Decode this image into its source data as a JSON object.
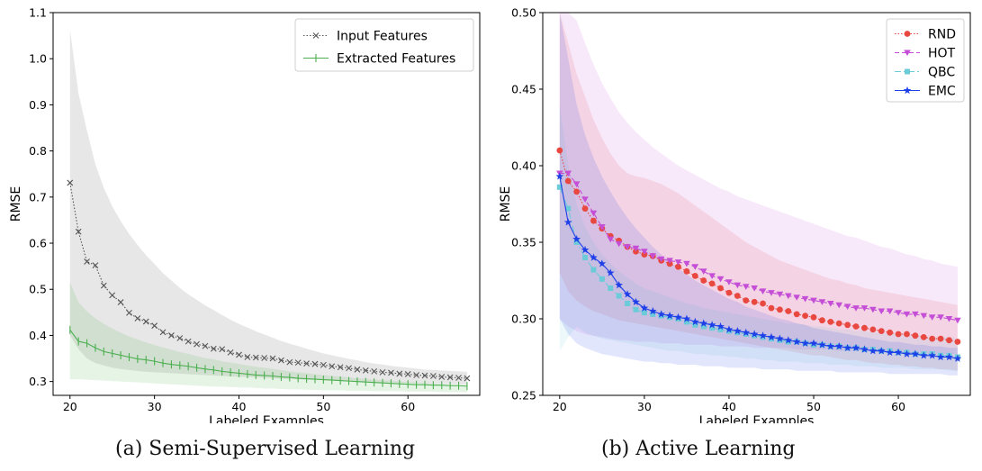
{
  "captions": [
    "(a) Semi-Supervised Learning",
    "(b) Active Learning"
  ],
  "chart_data": [
    {
      "type": "line",
      "title": "",
      "xlabel": "Labeled Examples",
      "ylabel": "RMSE",
      "xlim": [
        18,
        68.5
      ],
      "ylim": [
        0.27,
        1.1
      ],
      "xticks": [
        20,
        30,
        40,
        50,
        60
      ],
      "yticks": [
        0.3,
        0.4,
        0.5,
        0.6,
        0.7,
        0.8,
        0.9,
        1.0,
        1.1
      ],
      "ytick_labels": [
        "0.3",
        "0.4",
        "0.5",
        "0.6",
        "0.7",
        "0.8",
        "0.9",
        "1.0",
        "1.1"
      ],
      "grid": false,
      "legend": "top-right",
      "x_start": 20,
      "series": [
        {
          "name": "Input Features",
          "color": "#555555",
          "marker": "x",
          "linestyle": "dotted",
          "values": [
            0.731,
            0.625,
            0.56,
            0.552,
            0.508,
            0.487,
            0.472,
            0.449,
            0.437,
            0.43,
            0.421,
            0.407,
            0.4,
            0.394,
            0.387,
            0.381,
            0.377,
            0.371,
            0.37,
            0.363,
            0.358,
            0.353,
            0.352,
            0.351,
            0.35,
            0.346,
            0.342,
            0.341,
            0.339,
            0.338,
            0.336,
            0.333,
            0.331,
            0.329,
            0.326,
            0.324,
            0.322,
            0.32,
            0.319,
            0.317,
            0.316,
            0.314,
            0.313,
            0.312,
            0.31,
            0.309,
            0.308,
            0.307
          ],
          "band_upper": [
            1.063,
            0.925,
            0.845,
            0.771,
            0.72,
            0.68,
            0.648,
            0.62,
            0.596,
            0.574,
            0.555,
            0.535,
            0.519,
            0.503,
            0.489,
            0.477,
            0.465,
            0.455,
            0.444,
            0.434,
            0.425,
            0.417,
            0.409,
            0.402,
            0.395,
            0.388,
            0.382,
            0.377,
            0.371,
            0.366,
            0.361,
            0.357,
            0.353,
            0.349,
            0.346,
            0.342,
            0.339,
            0.337,
            0.334,
            0.332,
            0.33,
            0.328,
            0.326,
            0.325,
            0.324,
            0.323,
            0.322,
            0.321
          ],
          "band_lower": [
            0.4,
            0.37,
            0.35,
            0.34,
            0.335,
            0.33,
            0.327,
            0.325,
            0.323,
            0.321,
            0.32,
            0.319,
            0.318,
            0.317,
            0.316,
            0.315,
            0.314,
            0.313,
            0.312,
            0.311,
            0.31,
            0.31,
            0.309,
            0.308,
            0.307,
            0.306,
            0.306,
            0.305,
            0.304,
            0.304,
            0.303,
            0.302,
            0.302,
            0.301,
            0.3,
            0.3,
            0.299,
            0.298,
            0.298,
            0.297,
            0.297,
            0.296,
            0.296,
            0.295,
            0.295,
            0.294,
            0.294,
            0.293
          ]
        },
        {
          "name": "Extracted Features",
          "color": "#4caf50",
          "marker": "|",
          "linestyle": "solid",
          "values": [
            0.412,
            0.387,
            0.383,
            0.373,
            0.365,
            0.361,
            0.357,
            0.353,
            0.349,
            0.347,
            0.344,
            0.34,
            0.337,
            0.335,
            0.333,
            0.33,
            0.327,
            0.325,
            0.322,
            0.32,
            0.318,
            0.316,
            0.314,
            0.313,
            0.312,
            0.31,
            0.309,
            0.307,
            0.306,
            0.305,
            0.304,
            0.303,
            0.302,
            0.301,
            0.3,
            0.299,
            0.298,
            0.297,
            0.296,
            0.295,
            0.294,
            0.293,
            0.293,
            0.292,
            0.292,
            0.291,
            0.291,
            0.29
          ],
          "band_upper": [
            0.515,
            0.472,
            0.452,
            0.437,
            0.425,
            0.415,
            0.406,
            0.398,
            0.391,
            0.385,
            0.379,
            0.374,
            0.369,
            0.364,
            0.36,
            0.355,
            0.351,
            0.348,
            0.344,
            0.341,
            0.338,
            0.335,
            0.332,
            0.33,
            0.327,
            0.325,
            0.322,
            0.32,
            0.318,
            0.316,
            0.314,
            0.312,
            0.311,
            0.309,
            0.307,
            0.306,
            0.304,
            0.303,
            0.302,
            0.3,
            0.299,
            0.298,
            0.297,
            0.296,
            0.295,
            0.294,
            0.293,
            0.292
          ],
          "band_lower": [
            0.305,
            0.305,
            0.304,
            0.303,
            0.302,
            0.301,
            0.3,
            0.299,
            0.298,
            0.297,
            0.296,
            0.295,
            0.294,
            0.293,
            0.292,
            0.291,
            0.29,
            0.289,
            0.289,
            0.288,
            0.287,
            0.287,
            0.286,
            0.285,
            0.285,
            0.284,
            0.283,
            0.283,
            0.282,
            0.282,
            0.281,
            0.281,
            0.281,
            0.28,
            0.28,
            0.28,
            0.279,
            0.279,
            0.279,
            0.279,
            0.278,
            0.278,
            0.278,
            0.278,
            0.277,
            0.277,
            0.277,
            0.277
          ]
        }
      ]
    },
    {
      "type": "line",
      "title": "",
      "xlabel": "Labeled Examples",
      "ylabel": "RMSE",
      "xlim": [
        18,
        68.5
      ],
      "ylim": [
        0.25,
        0.5
      ],
      "xticks": [
        20,
        30,
        40,
        50,
        60
      ],
      "yticks": [
        0.25,
        0.3,
        0.35,
        0.4,
        0.45,
        0.5
      ],
      "ytick_labels": [
        "0.25",
        "0.30",
        "0.35",
        "0.40",
        "0.45",
        "0.50"
      ],
      "grid": false,
      "legend": "top-right",
      "x_start": 20,
      "series": [
        {
          "name": "RND",
          "color": "#e8483f",
          "marker": "o",
          "linestyle": "dotted",
          "values": [
            0.41,
            0.39,
            0.383,
            0.372,
            0.364,
            0.359,
            0.354,
            0.351,
            0.347,
            0.344,
            0.342,
            0.341,
            0.338,
            0.336,
            0.334,
            0.331,
            0.328,
            0.325,
            0.323,
            0.32,
            0.317,
            0.315,
            0.312,
            0.311,
            0.31,
            0.307,
            0.306,
            0.305,
            0.303,
            0.302,
            0.301,
            0.299,
            0.298,
            0.297,
            0.296,
            0.295,
            0.294,
            0.293,
            0.292,
            0.291,
            0.29,
            0.29,
            0.289,
            0.288,
            0.287,
            0.287,
            0.286,
            0.285
          ],
          "band_upper": [
            0.5,
            0.48,
            0.46,
            0.445,
            0.43,
            0.418,
            0.408,
            0.4,
            0.395,
            0.393,
            0.392,
            0.39,
            0.388,
            0.385,
            0.382,
            0.378,
            0.374,
            0.37,
            0.366,
            0.362,
            0.358,
            0.354,
            0.35,
            0.347,
            0.344,
            0.341,
            0.338,
            0.336,
            0.334,
            0.332,
            0.33,
            0.328,
            0.326,
            0.325,
            0.323,
            0.322,
            0.32,
            0.319,
            0.318,
            0.317,
            0.316,
            0.315,
            0.314,
            0.313,
            0.312,
            0.311,
            0.31,
            0.309
          ],
          "band_lower": [
            0.33,
            0.318,
            0.312,
            0.308,
            0.305,
            0.303,
            0.301,
            0.299,
            0.298,
            0.297,
            0.296,
            0.295,
            0.294,
            0.293,
            0.292,
            0.291,
            0.29,
            0.289,
            0.288,
            0.287,
            0.286,
            0.285,
            0.284,
            0.283,
            0.282,
            0.281,
            0.28,
            0.279,
            0.278,
            0.277,
            0.276,
            0.276,
            0.275,
            0.274,
            0.273,
            0.273,
            0.272,
            0.271,
            0.271,
            0.27,
            0.27,
            0.269,
            0.269,
            0.268,
            0.268,
            0.267,
            0.267,
            0.266
          ]
        },
        {
          "name": "HOT",
          "color": "#c44fd6",
          "marker": "v",
          "linestyle": "dashed",
          "values": [
            0.395,
            0.395,
            0.388,
            0.378,
            0.369,
            0.36,
            0.352,
            0.349,
            0.347,
            0.346,
            0.344,
            0.341,
            0.339,
            0.338,
            0.337,
            0.336,
            0.334,
            0.331,
            0.328,
            0.326,
            0.324,
            0.322,
            0.321,
            0.32,
            0.318,
            0.317,
            0.316,
            0.315,
            0.314,
            0.313,
            0.312,
            0.311,
            0.31,
            0.309,
            0.308,
            0.307,
            0.307,
            0.306,
            0.305,
            0.305,
            0.304,
            0.303,
            0.303,
            0.302,
            0.301,
            0.301,
            0.3,
            0.299
          ],
          "band_upper": [
            0.5,
            0.5,
            0.495,
            0.48,
            0.466,
            0.454,
            0.444,
            0.435,
            0.428,
            0.422,
            0.417,
            0.412,
            0.408,
            0.404,
            0.4,
            0.397,
            0.394,
            0.391,
            0.388,
            0.385,
            0.383,
            0.38,
            0.378,
            0.376,
            0.374,
            0.372,
            0.37,
            0.368,
            0.366,
            0.364,
            0.362,
            0.36,
            0.358,
            0.356,
            0.354,
            0.353,
            0.351,
            0.349,
            0.347,
            0.346,
            0.344,
            0.342,
            0.341,
            0.339,
            0.338,
            0.336,
            0.335,
            0.334
          ],
          "band_lower": [
            0.3,
            0.295,
            0.292,
            0.29,
            0.289,
            0.288,
            0.287,
            0.286,
            0.286,
            0.285,
            0.285,
            0.285,
            0.284,
            0.284,
            0.284,
            0.283,
            0.283,
            0.283,
            0.283,
            0.282,
            0.282,
            0.282,
            0.282,
            0.281,
            0.281,
            0.281,
            0.281,
            0.281,
            0.28,
            0.28,
            0.28,
            0.28,
            0.28,
            0.279,
            0.279,
            0.279,
            0.279,
            0.279,
            0.278,
            0.278,
            0.278,
            0.278,
            0.278,
            0.278,
            0.277,
            0.277,
            0.277,
            0.277
          ]
        },
        {
          "name": "QBC",
          "color": "#6ccbd8",
          "marker": "s",
          "linestyle": "dashdot",
          "values": [
            0.386,
            0.372,
            0.35,
            0.34,
            0.332,
            0.326,
            0.32,
            0.315,
            0.31,
            0.306,
            0.304,
            0.303,
            0.302,
            0.301,
            0.3,
            0.298,
            0.296,
            0.295,
            0.294,
            0.293,
            0.292,
            0.291,
            0.29,
            0.289,
            0.288,
            0.287,
            0.286,
            0.285,
            0.285,
            0.284,
            0.283,
            0.283,
            0.282,
            0.282,
            0.281,
            0.281,
            0.28,
            0.28,
            0.279,
            0.279,
            0.278,
            0.278,
            0.277,
            0.277,
            0.277,
            0.276,
            0.276,
            0.275
          ],
          "band_upper": [
            0.44,
            0.4,
            0.375,
            0.36,
            0.35,
            0.342,
            0.336,
            0.331,
            0.327,
            0.323,
            0.32,
            0.318,
            0.316,
            0.314,
            0.312,
            0.31,
            0.309,
            0.307,
            0.306,
            0.305,
            0.304,
            0.303,
            0.302,
            0.301,
            0.3,
            0.299,
            0.298,
            0.297,
            0.297,
            0.296,
            0.295,
            0.295,
            0.294,
            0.293,
            0.293,
            0.292,
            0.292,
            0.291,
            0.291,
            0.29,
            0.29,
            0.29,
            0.289,
            0.289,
            0.288,
            0.288,
            0.288,
            0.287
          ],
          "band_lower": [
            0.279,
            0.288,
            0.295,
            0.291,
            0.289,
            0.287,
            0.286,
            0.285,
            0.284,
            0.283,
            0.282,
            0.281,
            0.28,
            0.279,
            0.279,
            0.278,
            0.277,
            0.277,
            0.276,
            0.276,
            0.275,
            0.275,
            0.274,
            0.274,
            0.273,
            0.273,
            0.272,
            0.272,
            0.272,
            0.271,
            0.271,
            0.271,
            0.27,
            0.27,
            0.27,
            0.269,
            0.269,
            0.269,
            0.268,
            0.268,
            0.268,
            0.268,
            0.267,
            0.267,
            0.267,
            0.267,
            0.266,
            0.266
          ]
        },
        {
          "name": "EMC",
          "color": "#1f3fe8",
          "marker": "*",
          "linestyle": "solid",
          "values": [
            0.393,
            0.363,
            0.352,
            0.345,
            0.34,
            0.336,
            0.33,
            0.322,
            0.316,
            0.311,
            0.307,
            0.305,
            0.303,
            0.302,
            0.301,
            0.3,
            0.298,
            0.297,
            0.296,
            0.295,
            0.293,
            0.292,
            0.291,
            0.29,
            0.289,
            0.288,
            0.287,
            0.286,
            0.285,
            0.284,
            0.284,
            0.283,
            0.282,
            0.282,
            0.281,
            0.281,
            0.28,
            0.279,
            0.279,
            0.278,
            0.278,
            0.277,
            0.277,
            0.276,
            0.276,
            0.275,
            0.275,
            0.274
          ],
          "band_upper": [
            0.5,
            0.47,
            0.44,
            0.42,
            0.405,
            0.393,
            0.383,
            0.374,
            0.366,
            0.359,
            0.353,
            0.347,
            0.342,
            0.337,
            0.333,
            0.329,
            0.325,
            0.322,
            0.319,
            0.316,
            0.313,
            0.311,
            0.308,
            0.306,
            0.304,
            0.302,
            0.3,
            0.299,
            0.297,
            0.296,
            0.294,
            0.293,
            0.292,
            0.291,
            0.29,
            0.289,
            0.288,
            0.287,
            0.286,
            0.285,
            0.285,
            0.284,
            0.283,
            0.283,
            0.282,
            0.282,
            0.281,
            0.281
          ],
          "band_lower": [
            0.3,
            0.29,
            0.284,
            0.281,
            0.279,
            0.277,
            0.276,
            0.275,
            0.274,
            0.273,
            0.272,
            0.272,
            0.271,
            0.271,
            0.27,
            0.27,
            0.27,
            0.269,
            0.269,
            0.269,
            0.268,
            0.268,
            0.268,
            0.268,
            0.267,
            0.267,
            0.267,
            0.267,
            0.266,
            0.266,
            0.266,
            0.266,
            0.266,
            0.265,
            0.265,
            0.265,
            0.265,
            0.265,
            0.265,
            0.264,
            0.264,
            0.264,
            0.264,
            0.264,
            0.264,
            0.264,
            0.263,
            0.263
          ]
        }
      ]
    }
  ]
}
